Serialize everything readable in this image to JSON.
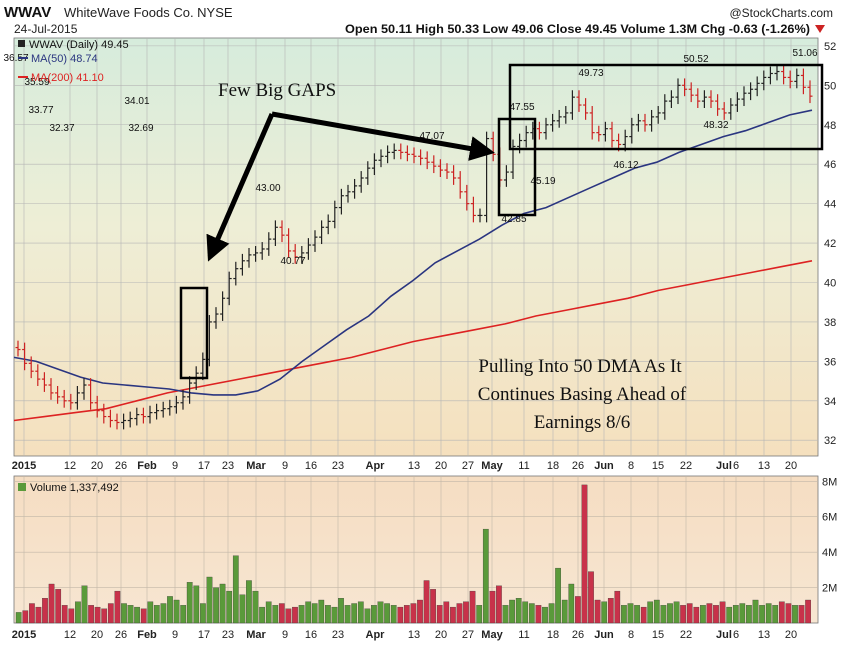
{
  "header": {
    "symbol": "WWAV",
    "company": "WhiteWave Foods Co. NYSE",
    "source": "@StockCharts.com",
    "date": "24-Jul-2015",
    "quote_text": "Open 50.11  High 50.33  Low 49.06  Close 49.45  Volume 1.3M  Chg -0.63 (-1.26%)",
    "chg_arrow": "down-arrow-icon"
  },
  "legend": {
    "price": "WWAV (Daily) 49.45",
    "ma50": "MA(50) 48.74",
    "ma200": "MA(200) 41.10",
    "volume": "Volume 1,337,492"
  },
  "annotations": {
    "gaps": "Few Big GAPS",
    "note_lines": [
      "Pulling Into 50 DMA As It",
      "Continues Basing Ahead of",
      "Earnings 8/6"
    ]
  },
  "colors": {
    "up": "#222222",
    "down": "#cc2222",
    "ma50": "#2a3580",
    "ma200": "#dd2222",
    "vol_up": "#5a9a3a",
    "vol_down": "#c8324a",
    "callout": "#4a8aa8"
  },
  "chart_data": [
    {
      "type": "line",
      "x_tick_labels": [
        "2015",
        "12",
        "20",
        "26",
        "Feb",
        "9",
        "17",
        "23",
        "Mar",
        "9",
        "16",
        "23",
        "Apr",
        "13",
        "20",
        "27",
        "May",
        "11",
        "18",
        "26",
        "Jun",
        "8",
        "15",
        "22",
        "Jul",
        "6",
        "13",
        "20"
      ],
      "y_tick_labels": [
        "32",
        "34",
        "36",
        "38",
        "40",
        "42",
        "44",
        "46",
        "48",
        "50",
        "52"
      ],
      "ylim": [
        31.2,
        52.4
      ],
      "grid": true,
      "legend": "top-left",
      "price_callouts": [
        "36.57",
        "35.59",
        "33.77",
        "32.37",
        "34.01",
        "32.69",
        "43.00",
        "40.77",
        "47.07",
        "47.55",
        "42.85",
        "45.19",
        "49.73",
        "46.12",
        "50.52",
        "48.32",
        "51.06"
      ],
      "series": [
        {
          "name": "WWAV (Daily)",
          "values": [
            36.6,
            35.9,
            35.5,
            35.1,
            34.8,
            34.4,
            34.2,
            34.0,
            33.9,
            34.4,
            34.8,
            33.9,
            33.5,
            33.2,
            33.0,
            32.9,
            33.0,
            33.1,
            33.3,
            33.2,
            33.4,
            33.5,
            33.6,
            33.7,
            33.9,
            34.2,
            34.9,
            35.4,
            36.1,
            38.0,
            38.4,
            39.2,
            40.2,
            40.7,
            41.1,
            41.4,
            41.5,
            41.7,
            42.2,
            42.8,
            42.4,
            41.6,
            41.3,
            41.5,
            41.9,
            42.3,
            42.8,
            43.1,
            43.8,
            44.4,
            44.6,
            44.9,
            45.3,
            45.8,
            46.2,
            46.4,
            46.6,
            46.7,
            46.6,
            46.5,
            46.4,
            46.3,
            46.1,
            45.9,
            45.7,
            45.6,
            45.3,
            44.6,
            44.0,
            43.4,
            43.4,
            47.3,
            46.5,
            45.2,
            45.6,
            46.9,
            47.2,
            47.6,
            47.8,
            47.6,
            48.0,
            48.2,
            48.4,
            48.6,
            49.4,
            49.0,
            48.6,
            47.6,
            47.5,
            47.8,
            47.2,
            47.0,
            47.4,
            48.0,
            48.2,
            48.0,
            48.4,
            48.6,
            49.2,
            49.4,
            50.0,
            49.8,
            49.5,
            49.2,
            49.4,
            49.2,
            48.8,
            48.6,
            49.0,
            49.3,
            49.6,
            49.8,
            50.1,
            50.4,
            50.6,
            50.7,
            50.4,
            50.2,
            50.5,
            49.9,
            49.45
          ]
        },
        {
          "name": "MA(50)",
          "values": [
            36.2,
            36.0,
            35.6,
            35.2,
            34.9,
            34.8,
            34.7,
            34.6,
            34.4,
            34.3,
            34.3,
            34.5,
            35.1,
            36.0,
            36.8,
            37.6,
            38.3,
            39.3,
            40.1,
            41.0,
            41.6,
            42.2,
            42.9,
            43.5,
            43.8,
            44.3,
            44.8,
            45.3,
            45.8,
            46.1,
            46.6,
            47.0,
            47.4,
            47.7,
            48.1,
            48.5,
            48.74
          ]
        },
        {
          "name": "MA(200)",
          "values": [
            33.0,
            33.2,
            33.4,
            33.6,
            34.0,
            34.4,
            34.7,
            35.0,
            35.3,
            35.6,
            35.9,
            36.2,
            36.6,
            37.0,
            37.3,
            37.6,
            37.9,
            38.3,
            38.6,
            38.9,
            39.2,
            39.6,
            39.9,
            40.2,
            40.5,
            40.8,
            41.1
          ]
        }
      ]
    },
    {
      "type": "bar",
      "y_tick_labels": [
        "2M",
        "4M",
        "6M",
        "8M"
      ],
      "ylim": [
        0,
        8.3
      ],
      "units": "millions",
      "grid": true,
      "legend": "top-left",
      "values": [
        0.6,
        0.7,
        1.1,
        0.9,
        1.4,
        2.2,
        1.9,
        1.0,
        0.8,
        1.2,
        2.1,
        1.0,
        0.9,
        0.8,
        1.1,
        1.8,
        1.1,
        1.0,
        0.9,
        0.8,
        1.2,
        1.0,
        1.1,
        1.5,
        1.3,
        1.0,
        2.3,
        2.1,
        1.1,
        2.6,
        2.0,
        2.2,
        1.8,
        3.8,
        1.6,
        2.4,
        1.8,
        0.9,
        1.2,
        1.0,
        1.1,
        0.8,
        0.9,
        1.0,
        1.2,
        1.1,
        1.3,
        1.0,
        0.9,
        1.4,
        1.0,
        1.1,
        1.2,
        0.8,
        1.0,
        1.2,
        1.1,
        1.0,
        0.9,
        1.0,
        1.1,
        1.3,
        2.4,
        1.9,
        1.0,
        1.2,
        0.9,
        1.1,
        1.2,
        1.8,
        1.0,
        5.3,
        1.8,
        2.1,
        1.0,
        1.3,
        1.4,
        1.2,
        1.1,
        1.0,
        0.9,
        1.1,
        3.1,
        1.3,
        2.2,
        1.5,
        7.8,
        2.9,
        1.3,
        1.2,
        1.4,
        1.8,
        1.0,
        1.1,
        1.0,
        0.9,
        1.2,
        1.3,
        1.0,
        1.1,
        1.2,
        1.0,
        1.1,
        0.9,
        1.0,
        1.1,
        1.0,
        1.2,
        0.9,
        1.0,
        1.1,
        1.0,
        1.3,
        1.0,
        1.1,
        1.0,
        1.2,
        1.1,
        1.0,
        1.0,
        1.3
      ]
    }
  ]
}
